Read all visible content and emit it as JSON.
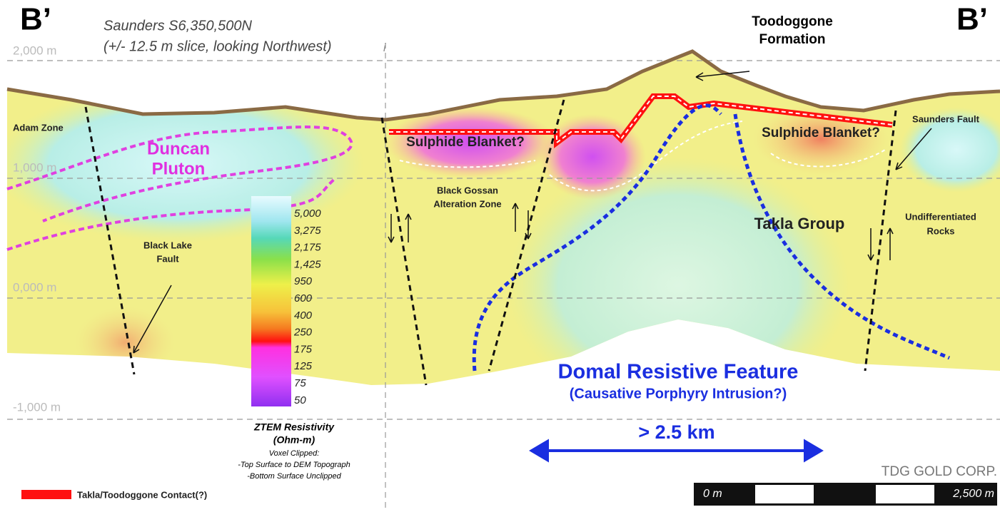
{
  "header": {
    "left_mark": "B’",
    "right_mark": "B’",
    "title": "Saunders  S6,350,500N",
    "subtitle": "(+/- 12.5 m slice, looking Northwest)",
    "marker": "i"
  },
  "elevations": [
    "2,000 m",
    "1,000 m",
    "0,000 m",
    "-1,000 m"
  ],
  "labels": {
    "toodoggone": [
      "Toodoggone",
      "Formation"
    ],
    "adam_zone": "Adam Zone",
    "duncan": [
      "Duncan",
      "Pluton"
    ],
    "sulphide_left": "Sulphide Blanket?",
    "sulphide_right": "Sulphide Blanket?",
    "black_gossan": [
      "Black Gossan",
      "Alteration Zone"
    ],
    "saunders_fault": "Saunders Fault",
    "undifferentiated": [
      "Undifferentiated",
      "Rocks"
    ],
    "takla": "Takla Group",
    "black_lake": [
      "Black Lake",
      "Fault"
    ],
    "domal": "Domal Resistive Feature",
    "causative": "(Causative Porphyry Intrusion?)",
    "width": "> 2.5 km"
  },
  "legend": {
    "scale": [
      "5,000",
      "3,275",
      "2,175",
      "1,425",
      "950",
      "600",
      "400",
      "250",
      "175",
      "125",
      "75",
      "50"
    ],
    "title": [
      "ZTEM Resistivity",
      "(Ohm-m)"
    ],
    "notes": [
      "Voxel Clipped:",
      "-Top Surface to DEM Topograph",
      "-Bottom Surface Unclipped"
    ],
    "contact": "Takla/Toodoggone Contact(?)"
  },
  "logo": "TDG GOLD CORP.",
  "scale_bar": {
    "start": "0 m",
    "end": "2,500 m"
  }
}
